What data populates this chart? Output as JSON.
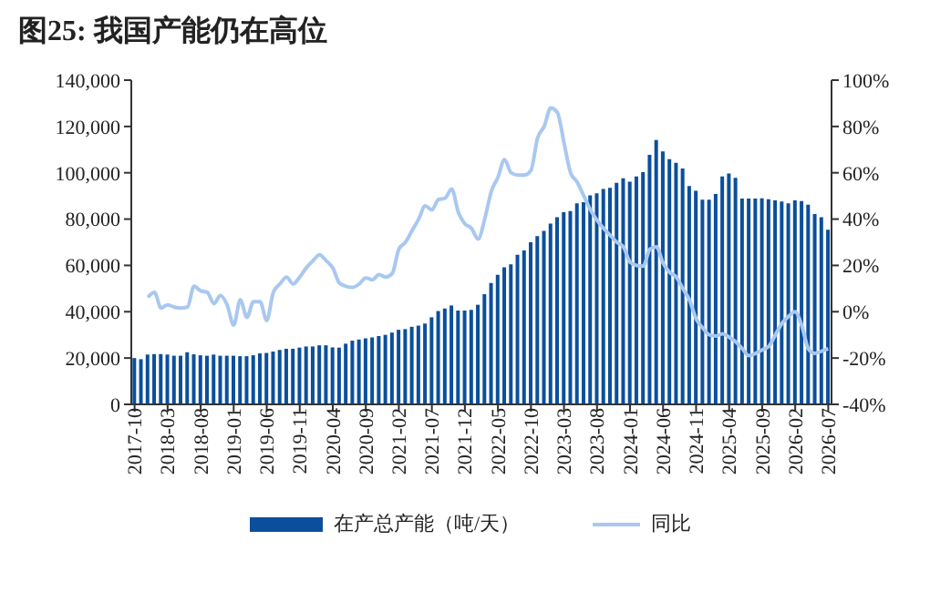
{
  "chart_data": {
    "type": "bar",
    "title": "图25: 我国产能仍在高位",
    "categories": [
      "2017-10",
      null,
      null,
      null,
      null,
      "2018-03",
      null,
      null,
      null,
      null,
      "2018-08",
      null,
      null,
      null,
      null,
      "2019-01",
      null,
      null,
      null,
      null,
      "2019-06",
      null,
      null,
      null,
      null,
      "2019-11",
      null,
      null,
      null,
      null,
      "2020-04",
      null,
      null,
      null,
      null,
      "2020-09",
      null,
      null,
      null,
      null,
      "2021-02",
      null,
      null,
      null,
      null,
      "2021-07",
      null,
      null,
      null,
      null,
      "2021-12",
      null,
      null,
      null,
      null,
      "2022-05",
      null,
      null,
      null,
      null,
      "2022-10",
      null,
      null,
      null,
      null,
      "2023-03",
      null,
      null,
      null,
      null,
      "2023-08",
      null,
      null,
      null,
      null,
      "2024-01",
      null,
      null,
      null,
      null,
      "2024-06",
      null,
      null,
      null,
      null,
      "2024-11",
      null,
      null,
      null,
      null,
      "2025-04",
      null,
      null,
      null,
      null,
      "2025-09",
      null,
      null,
      null,
      null,
      "2026-02",
      null,
      null,
      null,
      null,
      "2026-07"
    ],
    "series": [
      {
        "name": "在产总产能（吨/天）",
        "color": "#0b4f9c",
        "values": [
          20000,
          19500,
          21500,
          21700,
          21700,
          21500,
          21000,
          21000,
          22500,
          21600,
          21200,
          21000,
          21500,
          21000,
          21000,
          21000,
          20800,
          20800,
          21200,
          22000,
          22200,
          22800,
          23500,
          24000,
          24000,
          24500,
          25000,
          25000,
          25500,
          25500,
          24600,
          24500,
          26200,
          27500,
          28000,
          28500,
          28900,
          29500,
          30000,
          31000,
          32200,
          32500,
          33500,
          34000,
          34900,
          37600,
          40300,
          41400,
          42700,
          40500,
          40500,
          40800,
          43000,
          47600,
          52400,
          55900,
          59200,
          60500,
          64600,
          66500,
          70000,
          72700,
          74900,
          78100,
          80800,
          83000,
          83500,
          86800,
          87300,
          90300,
          91100,
          93000,
          93500,
          95700,
          97600,
          96200,
          98400,
          100300,
          107800,
          114100,
          109200,
          105900,
          104300,
          101900,
          94300,
          92200,
          88400,
          88400,
          90800,
          98400,
          99700,
          97800,
          88900,
          88900,
          88900,
          89000,
          88600,
          88100,
          87600,
          86800,
          88100,
          87800,
          86200,
          82200,
          80800,
          75400
        ]
      },
      {
        "name": "同比",
        "type": "line",
        "axis": "y2",
        "color": "#a9c8f0",
        "values": [
          null,
          null,
          6.2,
          8.4,
          1.6,
          3.0,
          2,
          1.6,
          2,
          11,
          9,
          8.4,
          3.5,
          7,
          3,
          -5.7,
          5.1,
          -2.4,
          4.3,
          4.3,
          -3.8,
          8.4,
          12,
          15,
          12,
          15,
          19,
          22,
          24.6,
          22,
          19,
          12.4,
          11,
          10.5,
          12,
          14.6,
          13.8,
          16,
          15,
          16.5,
          27,
          30,
          35,
          40,
          45.7,
          44,
          48.4,
          49,
          53,
          43,
          38,
          36,
          31.4,
          40,
          52,
          58,
          65.7,
          60,
          59,
          59,
          61,
          75,
          80,
          88,
          86,
          73,
          60,
          56,
          50,
          44,
          39.5,
          36,
          33,
          30,
          28,
          21.4,
          20,
          19.7,
          27,
          28,
          21,
          17,
          15,
          10,
          5,
          -3,
          -7,
          -10,
          -10.5,
          -9.5,
          -11,
          -13,
          -16,
          -19,
          -18,
          -16.5,
          -15,
          -10,
          -5,
          -2,
          0,
          -6,
          -16,
          -18,
          -17,
          -16
        ]
      }
    ],
    "ylim": [
      0,
      140000
    ],
    "yticks": [
      {
        "value": 0,
        "label": "0"
      },
      {
        "value": 20000,
        "label": "20,000"
      },
      {
        "value": 40000,
        "label": "40,000"
      },
      {
        "value": 60000,
        "label": "60,000"
      },
      {
        "value": 80000,
        "label": "80,000"
      },
      {
        "value": 100000,
        "label": "100,000"
      },
      {
        "value": 120000,
        "label": "120,000"
      },
      {
        "value": 140000,
        "label": "140,000"
      }
    ],
    "y2lim": [
      -40,
      100
    ],
    "y2ticks": [
      {
        "value": -40,
        "label": "-40%"
      },
      {
        "value": -20,
        "label": "-20%"
      },
      {
        "value": 0,
        "label": "0%"
      },
      {
        "value": 20,
        "label": "20%"
      },
      {
        "value": 40,
        "label": "40%"
      },
      {
        "value": 60,
        "label": "60%"
      },
      {
        "value": 80,
        "label": "80%"
      },
      {
        "value": 100,
        "label": "100%"
      }
    ],
    "legend": "bottom",
    "marker": "none"
  }
}
